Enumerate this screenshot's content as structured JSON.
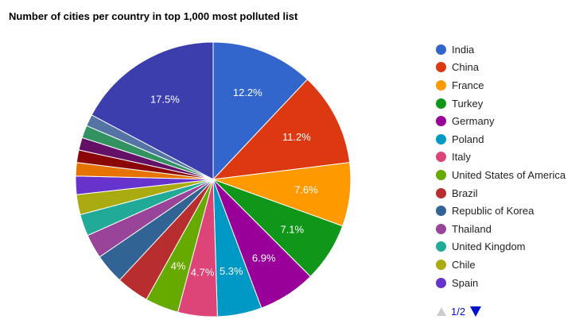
{
  "chart_data": {
    "type": "pie",
    "title": "Number of cities per country in top 1,000 most polluted list",
    "slices": [
      {
        "label": "India",
        "value": 12.2,
        "color": "#3366cc",
        "show_label": true
      },
      {
        "label": "China",
        "value": 11.2,
        "color": "#dc3912",
        "show_label": true
      },
      {
        "label": "France",
        "value": 7.6,
        "color": "#ff9900",
        "show_label": true
      },
      {
        "label": "Turkey",
        "value": 7.1,
        "color": "#109618",
        "show_label": true
      },
      {
        "label": "Germany",
        "value": 6.9,
        "color": "#990099",
        "show_label": true
      },
      {
        "label": "Poland",
        "value": 5.3,
        "color": "#0099c6",
        "show_label": true
      },
      {
        "label": "Italy",
        "value": 4.7,
        "color": "#dd4477",
        "show_label": true
      },
      {
        "label": "United States of America",
        "value": 4.0,
        "color": "#66aa00",
        "show_label": true
      },
      {
        "label": "Brazil",
        "value": 3.9,
        "color": "#b82e2e",
        "show_label": false
      },
      {
        "label": "Republic of Korea",
        "value": 3.6,
        "color": "#316395",
        "show_label": false
      },
      {
        "label": "Thailand",
        "value": 2.9,
        "color": "#994499",
        "show_label": false
      },
      {
        "label": "United Kingdom",
        "value": 2.6,
        "color": "#22aa99",
        "show_label": false
      },
      {
        "label": "Chile",
        "value": 2.4,
        "color": "#aaaa11",
        "show_label": false
      },
      {
        "label": "Spain",
        "value": 2.2,
        "color": "#6633cc",
        "show_label": false
      },
      {
        "label": "",
        "value": 1.6,
        "color": "#e67300",
        "show_label": false
      },
      {
        "label": "",
        "value": 1.5,
        "color": "#8b0707",
        "show_label": false
      },
      {
        "label": "",
        "value": 1.5,
        "color": "#651067",
        "show_label": false
      },
      {
        "label": "",
        "value": 1.5,
        "color": "#329262",
        "show_label": false
      },
      {
        "label": "",
        "value": 1.4,
        "color": "#5574a6",
        "show_label": false
      },
      {
        "label": "",
        "value": 17.5,
        "color": "#3b3eac",
        "show_label": true
      }
    ],
    "legend_placement": "right"
  },
  "legend_pager": {
    "text": "1/2",
    "prev_icon": "triangle-up-icon",
    "next_icon": "triangle-down-icon"
  }
}
